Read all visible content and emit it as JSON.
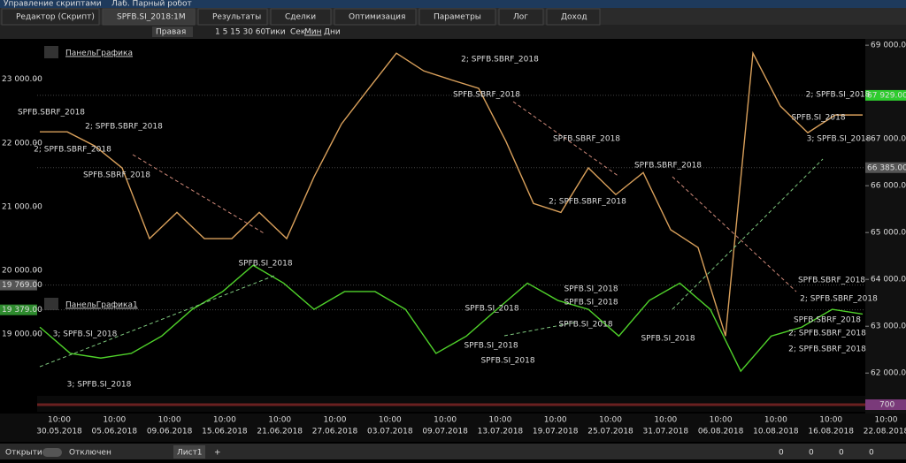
{
  "window": {
    "titles": [
      "Управление скриптами",
      "Лаб. Парный робот"
    ]
  },
  "tabs": [
    "Редактор (Скрипт)",
    "SPFB.SI_2018:1M",
    "Результаты",
    "Сделки",
    "Оптимизация",
    "Параметры",
    "Лог",
    "Доход"
  ],
  "toolbar": {
    "scale_mode": "Правая",
    "periods": "1 5 15 30 60",
    "timeframes": [
      "Тики",
      "Сек",
      "Мин",
      "Дни"
    ]
  },
  "panels": [
    "ПанельГрафика",
    "ПанельГрафика1"
  ],
  "chart_data": {
    "type": "line",
    "ylim": [
      61570,
      69210
    ],
    "yticks": [
      {
        "value": 69000,
        "label": "69 000.00"
      },
      {
        "value": 67000,
        "label": "67 000.00"
      },
      {
        "value": 66000,
        "label": "66 000.00"
      },
      {
        "value": 65000,
        "label": "65 000.00"
      },
      {
        "value": 64000,
        "label": "64 000.00"
      },
      {
        "value": 63000,
        "label": "63 000.00"
      },
      {
        "value": 62000,
        "label": "62 000.00"
      }
    ],
    "y2lim": [
      18070,
      23690
    ],
    "y2ticks": [
      {
        "value": 23000,
        "label": "23 000.00"
      },
      {
        "value": 22000,
        "label": "22 000.00"
      },
      {
        "value": 21000,
        "label": "21 000.00"
      },
      {
        "value": 20000,
        "label": "20 000.00"
      },
      {
        "value": 19000,
        "label": "19 000.00"
      }
    ],
    "series": [
      {
        "name": "SPFB.SBRF_2018",
        "color": "#d9a05b",
        "values": [
          67150,
          67150,
          66850,
          66380,
          64870,
          65430,
          64870,
          64870,
          65430,
          64870,
          66190,
          67320,
          68080,
          68830,
          68450,
          68260,
          68080,
          66940,
          65620,
          65430,
          66380,
          65810,
          66280,
          65060,
          64680,
          62790,
          68830,
          67700,
          67130,
          67510,
          67510
        ]
      },
      {
        "name": "SPFB.SI_2018",
        "color": "#4fd12a",
        "values": [
          62980,
          62420,
          62320,
          62420,
          62790,
          63360,
          63740,
          64300,
          63920,
          63360,
          63740,
          63740,
          63360,
          62420,
          62790,
          63360,
          63920,
          63550,
          63360,
          62790,
          63550,
          63920,
          63360,
          62040,
          62790,
          62980,
          63360,
          63260
        ]
      }
    ],
    "price_marks": [
      {
        "value": 67929,
        "label": "67 929.00",
        "axis": "y",
        "color": "#2ecc2e"
      },
      {
        "value": 66385,
        "label": "66 385.00",
        "axis": "y",
        "color": "#555"
      },
      {
        "value": 19769,
        "label": "19 769.00",
        "axis": "y2",
        "color": "#555"
      },
      {
        "value": 19379,
        "label": "19 379.00",
        "axis": "y2",
        "color": "#2e8b2e"
      }
    ],
    "volume_label": "700",
    "x_labels": [
      {
        "time": "10:00",
        "date": "30.05.2018"
      },
      {
        "time": "10:00",
        "date": "05.06.2018"
      },
      {
        "time": "10:00",
        "date": "09.06.2018"
      },
      {
        "time": "10:00",
        "date": "15.06.2018"
      },
      {
        "time": "10:00",
        "date": "21.06.2018"
      },
      {
        "time": "10:00",
        "date": "27.06.2018"
      },
      {
        "time": "10:00",
        "date": "03.07.2018"
      },
      {
        "time": "10:00",
        "date": "09.07.2018"
      },
      {
        "time": "10:00",
        "date": "13.07.2018"
      },
      {
        "time": "10:00",
        "date": "19.07.2018"
      },
      {
        "time": "10:00",
        "date": "25.07.2018"
      },
      {
        "time": "10:00",
        "date": "31.07.2018"
      },
      {
        "time": "10:00",
        "date": "06.08.2018"
      },
      {
        "time": "10:00",
        "date": "10.08.2018"
      },
      {
        "time": "10:00",
        "date": "16.08.2018"
      },
      {
        "time": "10:00",
        "date": "22.08.2018"
      }
    ],
    "annotations": [
      "SPFB.SBRF_2018",
      "2; SPFB.SBRF_2018",
      "2; SPFB.SBRF_2018",
      "SPFB.SBRF_2018",
      "SPFB.SI_2018",
      "2; SPFB.SBRF_2018",
      "SPFB.SBRF_2018",
      "SPFB.SBRF_2018",
      "2; SPFB.SBRF_2018",
      "SPFB.SBRF_2018",
      "2; SPFB.SI_2018",
      "SPFB.SI_2018",
      "3; SPFB.SI_2018",
      "SPFB.SBRF_2018",
      "2; SPFB.SBRF_2018",
      "SPFB.SBRF_2018",
      "2; SPFB.SBRF_2018",
      "2; SPFB.SBRF_2018",
      "SPFB.SI_2018",
      "SPFB.SI_2018",
      "SPFB.SI_2018",
      "SPFB.SI_2018",
      "SPFB.SI_2018",
      "SPFB.SI_2018",
      "SPFB.SI_2018",
      "3; SPFB.SI_2018",
      "3; SPFB.SI_2018"
    ]
  },
  "status": {
    "left": [
      "Открытие",
      "Отключен"
    ],
    "sheet": "Лист1",
    "counts": [
      "0",
      "0",
      "0",
      "0"
    ]
  }
}
